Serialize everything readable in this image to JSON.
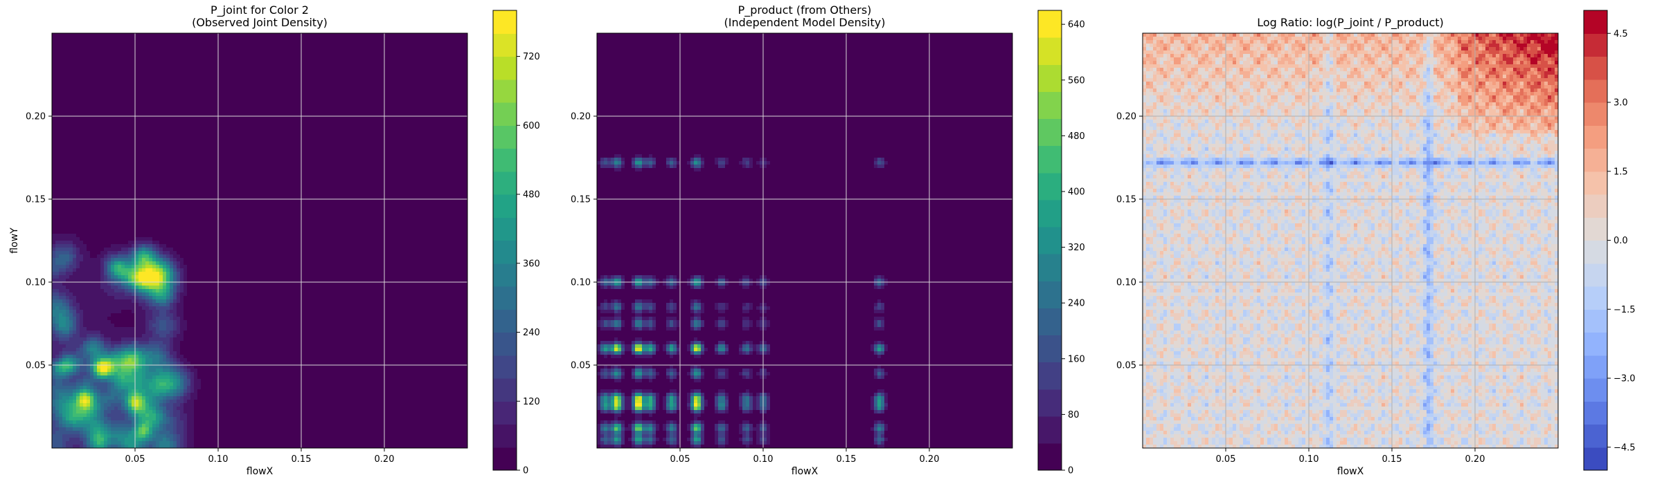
{
  "chart_data": [
    {
      "type": "heatmap",
      "title": "P_joint for Color 2\n(Observed Joint Density)",
      "xlabel": "flowX",
      "ylabel": "flowY",
      "xlim": [
        0.0,
        0.25
      ],
      "ylim": [
        0.0,
        0.25
      ],
      "x_ticks": [
        0.05,
        0.1,
        0.15,
        0.2
      ],
      "x_tick_labels": [
        "0.05",
        "0.10",
        "0.15",
        "0.20"
      ],
      "y_ticks": [
        0.05,
        0.1,
        0.15,
        0.2
      ],
      "y_tick_labels": [
        "0.05",
        "0.10",
        "0.15",
        "0.20"
      ],
      "grid": true,
      "colormap": "viridis",
      "colorbar": {
        "range": [
          0,
          800
        ],
        "ticks": [
          0,
          120,
          240,
          360,
          480,
          600,
          720
        ],
        "tick_labels": [
          "0",
          "120",
          "240",
          "360",
          "480",
          "600",
          "720"
        ]
      },
      "density": "high values concentrated at flowX 0.00-0.07, flowY 0.00-0.12; near zero elsewhere",
      "hotspots": [
        [
          0.03,
          0.048
        ],
        [
          0.05,
          0.028
        ],
        [
          0.02,
          0.03
        ],
        [
          0.055,
          0.01
        ],
        [
          0.01,
          0.05
        ]
      ]
    },
    {
      "type": "heatmap",
      "title": "P_product (from Others)\n(Independent Model Density)",
      "xlabel": "flowX",
      "ylabel": "",
      "xlim": [
        0.0,
        0.25
      ],
      "ylim": [
        0.0,
        0.25
      ],
      "x_ticks": [
        0.05,
        0.1,
        0.15,
        0.2
      ],
      "x_tick_labels": [
        "0.05",
        "0.10",
        "0.15",
        "0.20"
      ],
      "y_ticks": [
        0.05,
        0.1,
        0.15,
        0.2
      ],
      "y_tick_labels": [
        "0.05",
        "0.10",
        "0.15",
        "0.20"
      ],
      "grid": true,
      "colormap": "viridis",
      "colorbar": {
        "range": [
          0,
          660
        ],
        "ticks": [
          0,
          80,
          160,
          240,
          320,
          400,
          480,
          560,
          640
        ],
        "tick_labels": [
          "0",
          "80",
          "160",
          "240",
          "320",
          "400",
          "480",
          "560",
          "640"
        ]
      },
      "density": "product of marginals; horizontal bands at flowY ~0.01, 0.03, 0.06, 0.10, 0.17 and vertical bands at flowX ~0.01, 0.03, 0.06, 0.10, 0.17",
      "hotspots": [
        [
          0.025,
          0.028
        ],
        [
          0.06,
          0.06
        ],
        [
          0.025,
          0.06
        ],
        [
          0.06,
          0.028
        ]
      ]
    },
    {
      "type": "heatmap",
      "title": "Log Ratio: log(P_joint / P_product)",
      "xlabel": "flowX",
      "ylabel": "",
      "xlim": [
        0.0,
        0.25
      ],
      "ylim": [
        0.0,
        0.25
      ],
      "x_ticks": [
        0.05,
        0.1,
        0.15,
        0.2
      ],
      "x_tick_labels": [
        "0.05",
        "0.10",
        "0.15",
        "0.20"
      ],
      "y_ticks": [
        0.05,
        0.1,
        0.15,
        0.2
      ],
      "y_tick_labels": [
        "0.05",
        "0.10",
        "0.15",
        "0.20"
      ],
      "grid": true,
      "colormap": "coolwarm",
      "colorbar": {
        "range": [
          -5.0,
          5.0
        ],
        "ticks": [
          -4.5,
          -3.0,
          -1.5,
          0.0,
          1.5,
          3.0,
          4.5
        ],
        "tick_labels": [
          "−4.5",
          "−3.0",
          "−1.5",
          "0.0",
          "1.5",
          "3.0",
          "4.5"
        ]
      },
      "density": "mostly near 0; positive (red) toward top-right flowX > 0.18, flowY > 0.18; negative (blue) lines at flowY ~0.17 and flowX ~0.17"
    }
  ]
}
